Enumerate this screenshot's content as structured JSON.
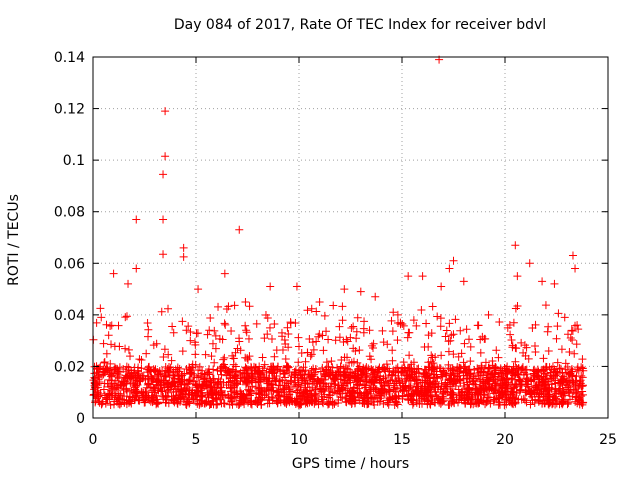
{
  "chart_data": {
    "type": "scatter",
    "title": "Day 084 of 2017, Rate Of TEC Index for receiver bdvl",
    "xlabel": "GPS time / hours",
    "ylabel": "ROTI / TECUs",
    "xlim": [
      0,
      25
    ],
    "ylim": [
      0,
      0.14
    ],
    "xticks": [
      0,
      5,
      10,
      15,
      20,
      25
    ],
    "xtick_labels": [
      "0",
      "5",
      "10",
      "15",
      "20",
      "25"
    ],
    "yticks": [
      0,
      0.02,
      0.04,
      0.06,
      0.08,
      0.1,
      0.12,
      0.14
    ],
    "ytick_labels": [
      "0",
      "0.02",
      "0.04",
      "0.06",
      "0.08",
      "0.1",
      "0.12",
      "0.14"
    ],
    "grid": true,
    "marker": "+",
    "color": "#ff0000",
    "x_data_range": [
      0,
      23.8
    ],
    "baseline_range": [
      0.005,
      0.02
    ],
    "series": [
      {
        "name": "ROTI",
        "notable_points": [
          {
            "x": 16.8,
            "y": 0.139
          },
          {
            "x": 3.5,
            "y": 0.119
          },
          {
            "x": 3.5,
            "y": 0.1015
          },
          {
            "x": 3.4,
            "y": 0.0945
          },
          {
            "x": 2.1,
            "y": 0.077
          },
          {
            "x": 3.4,
            "y": 0.077
          },
          {
            "x": 7.1,
            "y": 0.073
          },
          {
            "x": 4.4,
            "y": 0.066
          },
          {
            "x": 20.5,
            "y": 0.067
          },
          {
            "x": 3.4,
            "y": 0.0635
          },
          {
            "x": 23.3,
            "y": 0.063
          },
          {
            "x": 4.4,
            "y": 0.0625
          },
          {
            "x": 17.5,
            "y": 0.061
          },
          {
            "x": 21.2,
            "y": 0.06
          },
          {
            "x": 2.1,
            "y": 0.058
          },
          {
            "x": 23.4,
            "y": 0.058
          },
          {
            "x": 1.0,
            "y": 0.056
          },
          {
            "x": 6.4,
            "y": 0.056
          },
          {
            "x": 15.3,
            "y": 0.055
          },
          {
            "x": 16.0,
            "y": 0.055
          },
          {
            "x": 20.6,
            "y": 0.055
          },
          {
            "x": 17.3,
            "y": 0.058
          },
          {
            "x": 1.7,
            "y": 0.052
          },
          {
            "x": 8.6,
            "y": 0.051
          },
          {
            "x": 9.9,
            "y": 0.051
          },
          {
            "x": 12.2,
            "y": 0.05
          },
          {
            "x": 13.0,
            "y": 0.049
          },
          {
            "x": 16.9,
            "y": 0.051
          },
          {
            "x": 18.0,
            "y": 0.053
          },
          {
            "x": 21.8,
            "y": 0.053
          },
          {
            "x": 22.4,
            "y": 0.052
          },
          {
            "x": 0.4,
            "y": 0.039
          },
          {
            "x": 5.1,
            "y": 0.05
          },
          {
            "x": 7.4,
            "y": 0.045
          },
          {
            "x": 11.0,
            "y": 0.045
          },
          {
            "x": 13.7,
            "y": 0.047
          },
          {
            "x": 14.8,
            "y": 0.04
          },
          {
            "x": 19.2,
            "y": 0.04
          },
          {
            "x": 22.9,
            "y": 0.039
          },
          {
            "x": 23.5,
            "y": 0.036
          }
        ]
      }
    ]
  }
}
